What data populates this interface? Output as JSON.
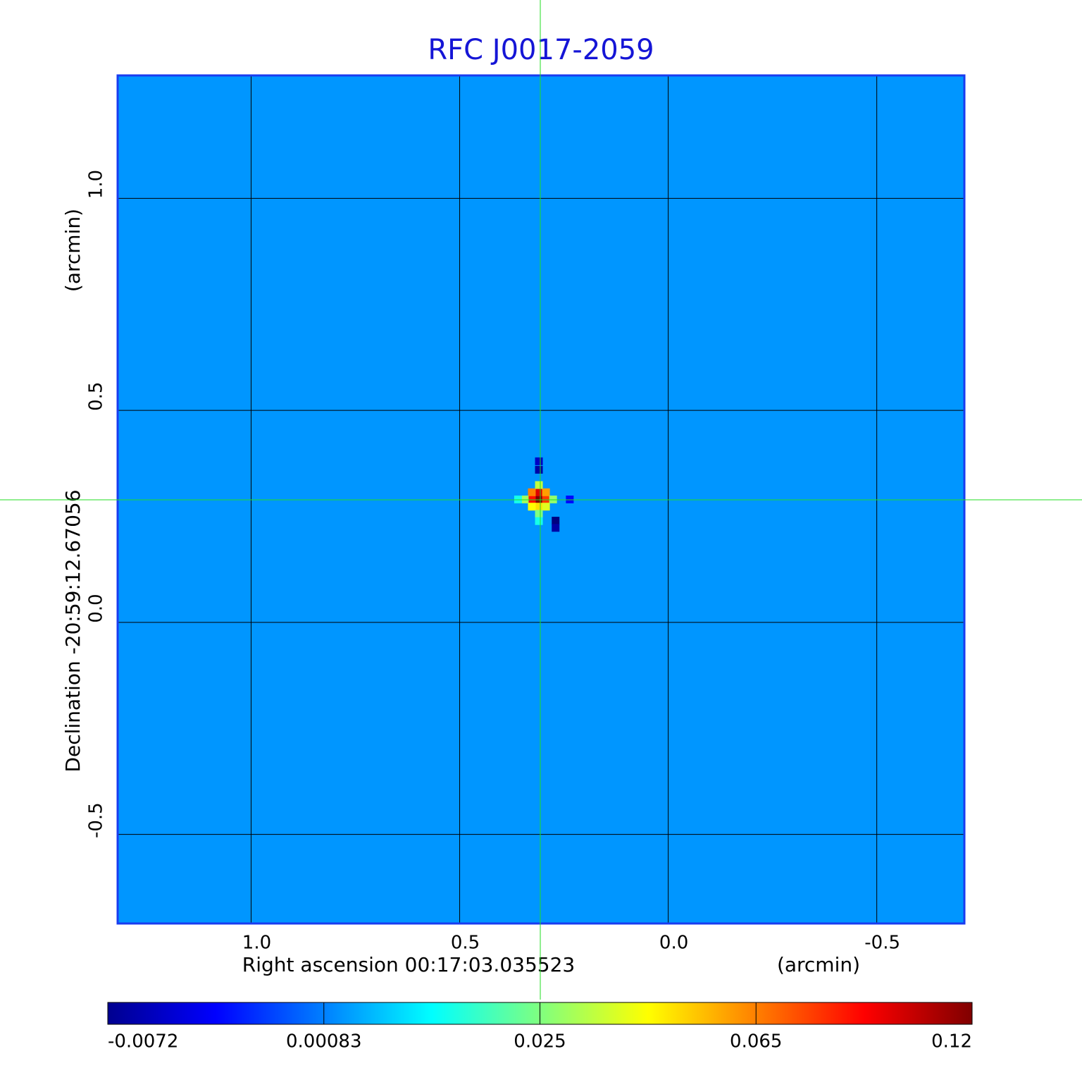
{
  "chart_data": {
    "type": "heatmap",
    "title": "RFC J0017-2059",
    "x_label": "Right ascension  00:17:03.035523",
    "x_unit": "(arcmin)",
    "y_label": "Declination  -20:59:12.67056",
    "y_unit": "(arcmin)",
    "xlim": [
      1.32,
      -0.71
    ],
    "ylim": [
      -0.71,
      1.29
    ],
    "xticks": [
      1.0,
      0.5,
      0.0,
      -0.5
    ],
    "yticks": [
      1.0,
      0.5,
      0.0,
      -0.5
    ],
    "xtick_labels": [
      "1.0",
      "0.5",
      "0.0",
      "-0.5"
    ],
    "ytick_labels": [
      "1.0",
      "0.5",
      "0.0",
      "-0.5"
    ],
    "grid": true,
    "colormap": "jet",
    "colorbar_ticks": [
      -0.0072,
      0.00083,
      0.025,
      0.065,
      0.12
    ],
    "background": 0.003,
    "pixels": [
      {
        "x": 0.31,
        "y": 0.29,
        "value": 0.12
      },
      {
        "x": 0.31,
        "y": 0.307,
        "value": 0.1
      },
      {
        "x": 0.293,
        "y": 0.29,
        "value": 0.08
      },
      {
        "x": 0.327,
        "y": 0.29,
        "value": 0.09
      },
      {
        "x": 0.327,
        "y": 0.307,
        "value": 0.065
      },
      {
        "x": 0.293,
        "y": 0.307,
        "value": 0.06
      },
      {
        "x": 0.31,
        "y": 0.273,
        "value": 0.05
      },
      {
        "x": 0.327,
        "y": 0.273,
        "value": 0.045
      },
      {
        "x": 0.293,
        "y": 0.273,
        "value": 0.04
      },
      {
        "x": 0.31,
        "y": 0.324,
        "value": 0.035
      },
      {
        "x": 0.344,
        "y": 0.29,
        "value": 0.03
      },
      {
        "x": 0.276,
        "y": 0.29,
        "value": 0.028
      },
      {
        "x": 0.31,
        "y": 0.256,
        "value": 0.025
      },
      {
        "x": 0.36,
        "y": 0.29,
        "value": 0.015
      },
      {
        "x": 0.31,
        "y": 0.239,
        "value": 0.015
      },
      {
        "x": 0.31,
        "y": 0.36,
        "value": -0.006
      },
      {
        "x": 0.31,
        "y": 0.38,
        "value": -0.005
      },
      {
        "x": 0.27,
        "y": 0.24,
        "value": -0.0072
      },
      {
        "x": 0.27,
        "y": 0.223,
        "value": -0.006
      },
      {
        "x": 0.236,
        "y": 0.29,
        "value": -0.003
      }
    ]
  }
}
